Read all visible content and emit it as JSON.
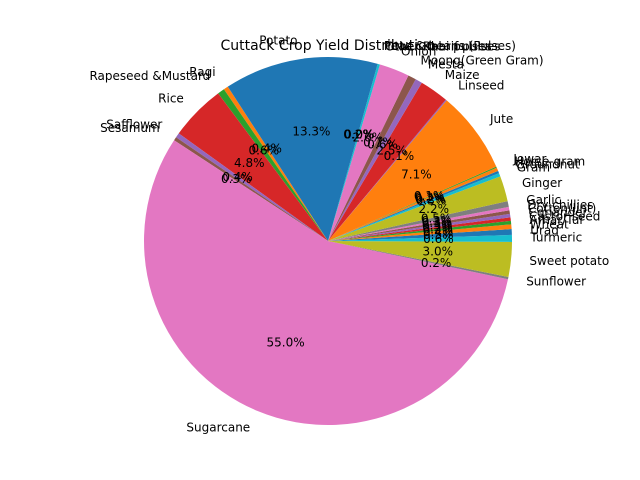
{
  "chart_data": {
    "type": "pie",
    "title": "Cuttack Crop Yield Distribution",
    "start_angle_deg": 123,
    "direction": "counterclockwise",
    "slices": [
      {
        "label": "Ragi",
        "value": 0.4,
        "pct_label": "0.4%",
        "color": "#ff7f0e"
      },
      {
        "label": "Rapeseed &Mustard",
        "value": 0.6,
        "pct_label": "0.6%",
        "color": "#2ca02c"
      },
      {
        "label": "Rice",
        "value": 4.8,
        "pct_label": "4.8%",
        "color": "#d62728"
      },
      {
        "label": "Safflower",
        "value": 0.4,
        "pct_label": "0.4%",
        "color": "#9467bd"
      },
      {
        "label": "Sesamum",
        "value": 0.3,
        "pct_label": "0.3%",
        "color": "#8c564b"
      },
      {
        "label": "Sugarcane",
        "value": 55.0,
        "pct_label": "55.0%",
        "color": "#e377c2"
      },
      {
        "label": "Sunflower",
        "value": 0.2,
        "pct_label": "0.2%",
        "color": "#7f7f7f"
      },
      {
        "label": "Sweet potato",
        "value": 3.0,
        "pct_label": "3.0%",
        "color": "#bcbd22"
      },
      {
        "label": "Turmeric",
        "value": 0.6,
        "pct_label": "0.6%",
        "color": "#17becf"
      },
      {
        "label": "Urad",
        "value": 0.5,
        "pct_label": "0.5%",
        "color": "#1f77b4"
      },
      {
        "label": "Wheat",
        "value": 0.4,
        "pct_label": "0.4%",
        "color": "#ff7f0e"
      },
      {
        "label": "Arhar/Tur",
        "value": 0.3,
        "pct_label": "0.3%",
        "color": "#2ca02c"
      },
      {
        "label": "Castor seed",
        "value": 0.3,
        "pct_label": "0.3%",
        "color": "#d62728"
      },
      {
        "label": "Coriander",
        "value": 0.3,
        "pct_label": "0.3%",
        "color": "#9467bd"
      },
      {
        "label": "Cotton(lint)",
        "value": 0.3,
        "pct_label": "0.3%",
        "color": "#8c564b"
      },
      {
        "label": "Dry chillies",
        "value": 0.3,
        "pct_label": "0.3%",
        "color": "#e377c2"
      },
      {
        "label": "Garlic",
        "value": 0.5,
        "pct_label": "0.5%",
        "color": "#7f7f7f"
      },
      {
        "label": "Ginger",
        "value": 2.2,
        "pct_label": "2.2%",
        "color": "#bcbd22"
      },
      {
        "label": "Gram",
        "value": 0.3,
        "pct_label": "0.3%",
        "color": "#17becf"
      },
      {
        "label": "Groundnut",
        "value": 0.2,
        "pct_label": "0.2%",
        "color": "#1f77b4"
      },
      {
        "label": "Horse-gram",
        "value": 0.3,
        "pct_label": "0.3%",
        "color": "#ff7f0e"
      },
      {
        "label": "Jowar",
        "value": 0.1,
        "pct_label": "0.1%",
        "color": "#2ca02c"
      },
      {
        "label": "Jute",
        "value": 7.1,
        "pct_label": "7.1%",
        "color": "#ff7f0e"
      },
      {
        "label": "Linseed",
        "value": 0.1,
        "pct_label": "0.1%",
        "color": "#9467bd"
      },
      {
        "label": "Maize",
        "value": 2.5,
        "pct_label": "2.5%",
        "color": "#d62728"
      },
      {
        "label": "Mesta",
        "value": 0.6,
        "pct_label": "0.6%",
        "color": "#9467bd"
      },
      {
        "label": "Moong(Green Gram)",
        "value": 0.7,
        "pct_label": "0.7%",
        "color": "#8c564b"
      },
      {
        "label": "Onion",
        "value": 2.6,
        "pct_label": "2.6%",
        "color": "#e377c2"
      },
      {
        "label": "Other Kharif pulses",
        "value": 0.0,
        "pct_label": "0.0%",
        "color": "#7f7f7f"
      },
      {
        "label": "Other Rabi pulses",
        "value": 0.0,
        "pct_label": "0.0%",
        "color": "#bcbd22"
      },
      {
        "label": "Peas & beans (Pulses)",
        "value": 0.2,
        "pct_label": "0.2%",
        "color": "#17becf"
      },
      {
        "label": "Potato",
        "value": 13.3,
        "pct_label": "13.3%",
        "color": "#1f77b4"
      }
    ]
  }
}
